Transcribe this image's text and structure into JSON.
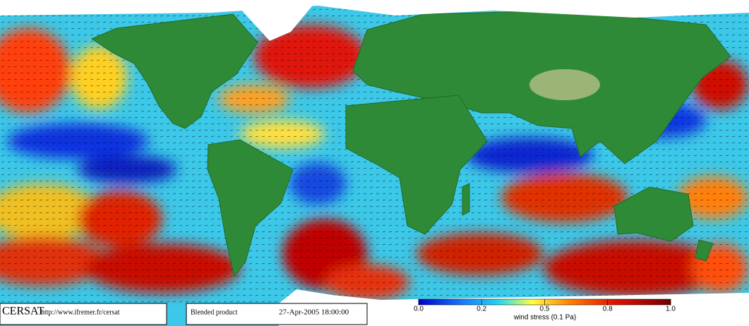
{
  "header": {
    "logo": "CERSAT",
    "url": "http://www.ifremer.fr/cersat"
  },
  "product": {
    "name": "Blended product",
    "timestamp": "27-Apr-2005 18:00:00"
  },
  "colorbar": {
    "ticks": [
      {
        "value": 0,
        "label": "0.0"
      },
      0.2,
      0.5,
      0.8,
      {
        "value": 1,
        "label": "1.0"
      }
    ],
    "label": "wind stress (0.1 Pa)"
  }
}
